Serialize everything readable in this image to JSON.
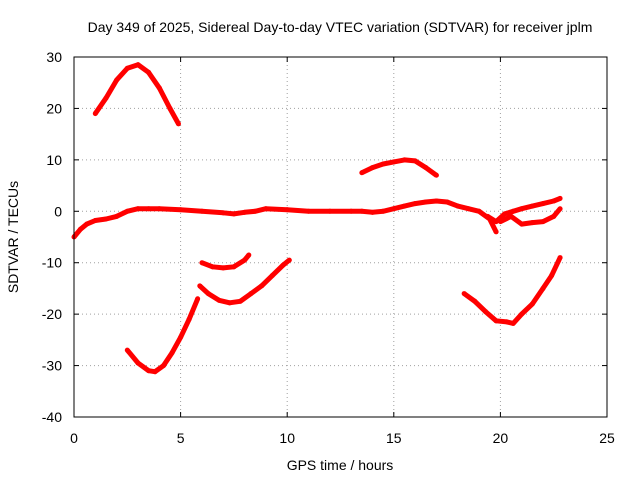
{
  "chart_data": {
    "type": "line",
    "title": "Day 349 of 2025, Sidereal Day-to-day VTEC variation (SDTVAR) for receiver jplm",
    "xlabel": "GPS time / hours",
    "ylabel": "SDTVAR / TECUs",
    "xlim": [
      0,
      25
    ],
    "ylim": [
      -40,
      30
    ],
    "xticks": [
      0,
      5,
      10,
      15,
      20,
      25
    ],
    "yticks": [
      -40,
      -30,
      -20,
      -10,
      0,
      10,
      20,
      30
    ],
    "grid": true,
    "legend": "none",
    "series_color": "#ff0000",
    "series": [
      {
        "name": "arc-top",
        "x": [
          1.0,
          1.5,
          2.0,
          2.5,
          3.0,
          3.5,
          4.0,
          4.5,
          4.9
        ],
        "y": [
          19,
          22,
          25.5,
          27.8,
          28.5,
          27,
          24,
          20,
          17
        ]
      },
      {
        "name": "arc-main",
        "x": [
          0,
          0.3,
          0.6,
          1.0,
          1.5,
          2.0,
          2.5,
          3.0,
          3.5,
          4.0,
          5.0,
          6.0,
          7.0,
          7.5,
          8.0,
          8.5,
          9.0,
          10.0,
          11.0,
          12.0,
          13.0,
          13.5,
          14.0,
          14.5,
          15.0,
          15.5,
          16.0,
          16.5,
          17.0,
          17.5,
          18.0,
          18.5,
          19.0,
          19.5,
          19.8
        ],
        "y": [
          -5,
          -3.5,
          -2.5,
          -1.8,
          -1.5,
          -1.0,
          0,
          0.5,
          0.5,
          0.5,
          0.3,
          0,
          -0.3,
          -0.5,
          -0.2,
          0,
          0.5,
          0.3,
          0,
          0,
          0,
          0,
          -0.2,
          0,
          0.5,
          1,
          1.5,
          1.8,
          2,
          1.8,
          1,
          0.5,
          0,
          -1.5,
          -4
        ]
      },
      {
        "name": "arc-late-a",
        "x": [
          19.4,
          19.8,
          20.2,
          20.6,
          21.0,
          21.5,
          22.0,
          22.5,
          22.8
        ],
        "y": [
          -1,
          -2,
          -0.5,
          0,
          0.5,
          1,
          1.5,
          2,
          2.5
        ]
      },
      {
        "name": "arc-late-b",
        "x": [
          20.0,
          20.5,
          21.0,
          21.5,
          22.0,
          22.5,
          22.8
        ],
        "y": [
          -2,
          -1,
          -2.5,
          -2.2,
          -2,
          -1,
          0.5
        ]
      },
      {
        "name": "arc-pos10",
        "x": [
          13.5,
          14.0,
          14.5,
          15.0,
          15.5,
          16.0,
          16.5,
          17.0
        ],
        "y": [
          7.5,
          8.5,
          9.2,
          9.6,
          10,
          9.8,
          8.5,
          7
        ]
      },
      {
        "name": "arc-neg10a",
        "x": [
          6.0,
          6.5,
          7.0,
          7.5,
          8.0,
          8.2
        ],
        "y": [
          -10,
          -10.8,
          -11,
          -10.8,
          -9.5,
          -8.5
        ]
      },
      {
        "name": "arc-neg15",
        "x": [
          5.9,
          6.3,
          6.8,
          7.3,
          7.8,
          8.3,
          8.8,
          9.3,
          9.8,
          10.1
        ],
        "y": [
          -14.5,
          -16,
          -17.3,
          -17.8,
          -17.5,
          -16,
          -14.5,
          -12.5,
          -10.5,
          -9.5
        ]
      },
      {
        "name": "arc-neg30",
        "x": [
          2.5,
          3.0,
          3.5,
          3.8,
          4.2,
          4.6,
          5.0,
          5.4,
          5.8
        ],
        "y": [
          -27,
          -29.5,
          -31,
          -31.2,
          -30,
          -27.5,
          -24.5,
          -21,
          -17
        ]
      },
      {
        "name": "arc-neg20",
        "x": [
          18.3,
          18.8,
          19.3,
          19.8,
          20.3,
          20.6,
          21.0,
          21.5,
          22.0,
          22.4,
          22.8
        ],
        "y": [
          -16,
          -17.5,
          -19.5,
          -21.3,
          -21.5,
          -21.8,
          -20,
          -18,
          -15,
          -12.5,
          -9
        ]
      }
    ]
  }
}
